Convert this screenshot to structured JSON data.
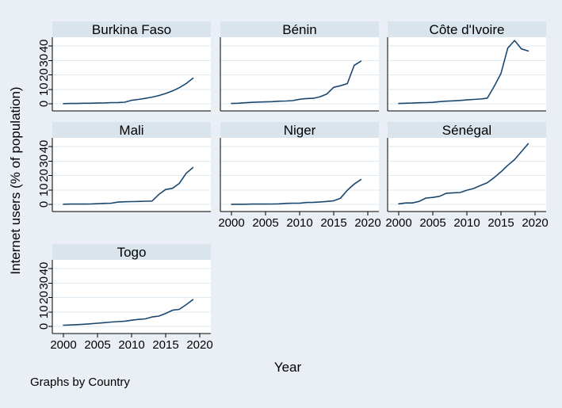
{
  "colors": {
    "background": "#e9eff5",
    "panel_header": "#dae4ec",
    "plot_background": "#ffffff",
    "gridline": "#dfeaf3",
    "axis": "#000000",
    "line": "#1a476f"
  },
  "chart_data": {
    "type": "line",
    "title": "",
    "facet_by": "Country",
    "xlabel": "Year",
    "ylabel": "Internet users (% of population)",
    "note": "Graphs by Country",
    "legend": "none",
    "grid": true,
    "xlim": [
      2000,
      2020
    ],
    "ylim": [
      0,
      45
    ],
    "x_ticks": [
      2000,
      2005,
      2010,
      2015,
      2020
    ],
    "y_ticks": [
      0,
      10,
      20,
      30,
      40
    ],
    "x": [
      2000,
      2001,
      2002,
      2003,
      2004,
      2005,
      2006,
      2007,
      2008,
      2009,
      2010,
      2011,
      2012,
      2013,
      2014,
      2015,
      2016,
      2017,
      2018,
      2019
    ],
    "series": [
      {
        "name": "Burkina Faso",
        "values": [
          0.1,
          0.2,
          0.2,
          0.4,
          0.4,
          0.5,
          0.6,
          0.8,
          0.9,
          1.1,
          2.4,
          3.0,
          3.7,
          4.6,
          5.7,
          7.1,
          8.9,
          11.1,
          14.0,
          17.7
        ]
      },
      {
        "name": "Bénin",
        "values": [
          0.2,
          0.4,
          0.7,
          1.0,
          1.2,
          1.3,
          1.5,
          1.8,
          1.9,
          2.2,
          3.1,
          3.6,
          3.8,
          4.9,
          6.8,
          11.4,
          12.5,
          14.0,
          26.5,
          29.5
        ]
      },
      {
        "name": "Côte d'Ivoire",
        "values": [
          0.2,
          0.4,
          0.5,
          0.7,
          0.8,
          1.0,
          1.5,
          1.8,
          2.0,
          2.3,
          2.7,
          3.0,
          3.3,
          3.9,
          12.0,
          21.0,
          38.5,
          43.8,
          38.0,
          36.5
        ]
      },
      {
        "name": "Mali",
        "values": [
          0.1,
          0.2,
          0.2,
          0.2,
          0.3,
          0.5,
          0.7,
          0.8,
          1.6,
          1.8,
          1.9,
          2.0,
          2.2,
          2.3,
          6.9,
          10.3,
          11.1,
          14.5,
          21.5,
          25.5
        ]
      },
      {
        "name": "Niger",
        "values": [
          0.04,
          0.1,
          0.1,
          0.2,
          0.2,
          0.2,
          0.3,
          0.4,
          0.7,
          0.8,
          0.8,
          1.3,
          1.4,
          1.7,
          2.0,
          2.5,
          4.3,
          9.8,
          14.0,
          17.2
        ]
      },
      {
        "name": "Sénégal",
        "values": [
          0.4,
          1.0,
          1.0,
          2.1,
          4.4,
          4.8,
          5.6,
          7.7,
          8.0,
          8.2,
          9.8,
          11.0,
          13.1,
          15.0,
          18.5,
          22.5,
          27.0,
          31.0,
          36.5,
          42.0
        ]
      },
      {
        "name": "Togo",
        "values": [
          0.8,
          1.0,
          1.2,
          1.5,
          1.8,
          2.2,
          2.6,
          3.0,
          3.3,
          3.6,
          4.3,
          4.8,
          5.2,
          6.5,
          7.1,
          9.0,
          11.2,
          11.8,
          15.0,
          18.5
        ]
      }
    ]
  }
}
